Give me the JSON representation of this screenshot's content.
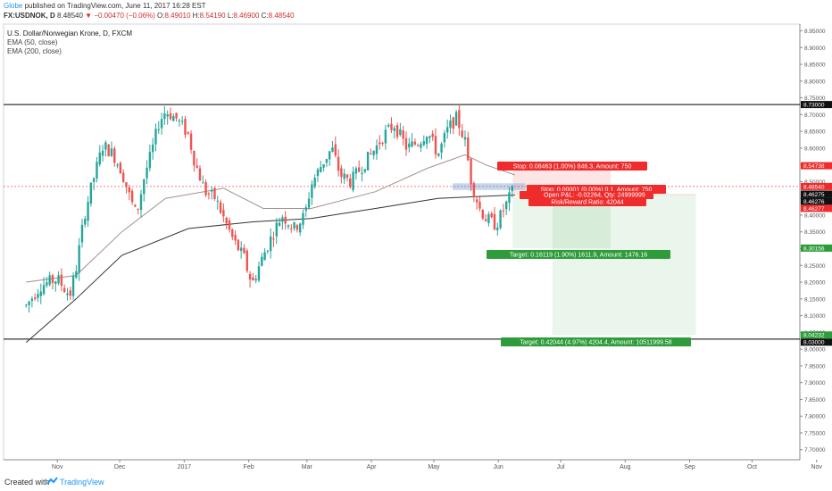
{
  "header": {
    "author": "Globe",
    "published": "published on TradingView.com, June 11, 2017 16:28 EST",
    "symbol": "FX:USDNOK, D",
    "last": "8.48540",
    "change": "▼ −0.00470 (−0.06%)",
    "o_label": "O:",
    "o": "8.49010",
    "h_label": "H:",
    "h": "8.54190",
    "l_label": "L:",
    "l": "8.46900",
    "c_label": "C:",
    "c": "8.48540"
  },
  "legend": {
    "title": "U.S. Dollar/Norwegian Krone, D, FXCM",
    "ema50": "EMA (50, close)",
    "ema200": "EMA (200, close)"
  },
  "footer": {
    "created": "Created with",
    "brand": "TradingView"
  },
  "colors": {
    "up": "#26a69a",
    "down": "#ef5350",
    "ema50": "#a58f8f",
    "ema200": "#333333",
    "target": "#2e9c3a",
    "stop": "#ef2b2b"
  },
  "chart_data": {
    "type": "candlestick",
    "ylim": [
      7.67,
      8.97
    ],
    "y_ticks": [
      "8.95000",
      "8.90000",
      "8.85000",
      "8.80000",
      "8.75000",
      "8.70000",
      "8.65000",
      "8.60000",
      "8.55000",
      "8.50000",
      "8.45000",
      "8.40000",
      "8.35000",
      "8.30000",
      "8.25000",
      "8.20000",
      "8.15000",
      "8.10000",
      "8.05000",
      "8.00000",
      "7.95000",
      "7.90000",
      "7.85000",
      "7.80000",
      "7.75000",
      "7.70000"
    ],
    "x_ticks": [
      "Nov",
      "Dec",
      "2017",
      "Feb",
      "Mar",
      "Apr",
      "May",
      "Jun",
      "Jul",
      "Aug",
      "Sep",
      "Oct",
      "Nov"
    ],
    "horizontal_lines": [
      8.73,
      8.03
    ],
    "current_price": 8.4854,
    "price_labels": [
      {
        "text": "8.73000",
        "value": 8.73,
        "style": "black"
      },
      {
        "text": "8.54738",
        "value": 8.54738,
        "style": "red"
      },
      {
        "text": "8.48540",
        "value": 8.4854,
        "style": "red"
      },
      {
        "text": "8.46275",
        "value": 8.46275,
        "style": "black"
      },
      {
        "text": "8.46276",
        "value": 8.46276,
        "style": "black"
      },
      {
        "text": "8.46277",
        "value": 8.46277,
        "style": "red"
      },
      {
        "text": "8.30156",
        "value": 8.30156,
        "style": "green"
      },
      {
        "text": "8.04232",
        "value": 8.04232,
        "style": "green"
      },
      {
        "text": "8.03000",
        "value": 8.03,
        "style": "black"
      }
    ],
    "positions": [
      {
        "entry": 8.46275,
        "stop": 8.54738,
        "target": 8.30156,
        "start": "2017-06-08",
        "end": "2017-07-25"
      },
      {
        "entry": 8.46276,
        "stop": 8.46277,
        "target": 8.04232,
        "start": "2017-06-27",
        "end": "2017-09-04"
      }
    ],
    "annotations": [
      {
        "text": "Stop: 0.08463 (1.00%) 846.3, Amount: 750",
        "type": "stop"
      },
      {
        "text": "Stop: 0.00001 (0.00%) 0.1, Amount: 750",
        "type": "stop"
      },
      {
        "text": "Open P&L: -0.02264, Qty: 24999999",
        "type": "stop"
      },
      {
        "text": "Open P&L: -0.02264, Qty: 24999999",
        "type": "stop"
      },
      {
        "text": "Risk/Reward Ratio: 42044",
        "type": "stop"
      },
      {
        "text": "Target: 0.16119 (1.90%) 1611.9, Amount: 1476.16",
        "type": "target"
      },
      {
        "text": "Target: 0.42044 (4.97%) 4204.4, Amount: 10511999.58",
        "type": "target"
      }
    ],
    "candle_points": [
      [
        "2016-10-17",
        8.13
      ],
      [
        "2016-10-24",
        8.19
      ],
      [
        "2016-11-01",
        8.21
      ],
      [
        "2016-11-07",
        8.16
      ],
      [
        "2016-11-10",
        8.24
      ],
      [
        "2016-11-14",
        8.4
      ],
      [
        "2016-11-18",
        8.5
      ],
      [
        "2016-11-23",
        8.61
      ],
      [
        "2016-11-28",
        8.58
      ],
      [
        "2016-12-02",
        8.53
      ],
      [
        "2016-12-06",
        8.45
      ],
      [
        "2016-12-09",
        8.4
      ],
      [
        "2016-12-13",
        8.52
      ],
      [
        "2016-12-16",
        8.58
      ],
      [
        "2016-12-20",
        8.68
      ],
      [
        "2016-12-23",
        8.71
      ],
      [
        "2016-12-28",
        8.69
      ],
      [
        "2017-01-03",
        8.64
      ],
      [
        "2017-01-06",
        8.56
      ],
      [
        "2017-01-11",
        8.47
      ],
      [
        "2017-01-16",
        8.45
      ],
      [
        "2017-01-20",
        8.39
      ],
      [
        "2017-01-25",
        8.32
      ],
      [
        "2017-01-30",
        8.27
      ],
      [
        "2017-02-01",
        8.22
      ],
      [
        "2017-02-03",
        8.2
      ],
      [
        "2017-02-08",
        8.28
      ],
      [
        "2017-02-13",
        8.35
      ],
      [
        "2017-02-17",
        8.4
      ],
      [
        "2017-02-23",
        8.36
      ],
      [
        "2017-02-28",
        8.4
      ],
      [
        "2017-03-03",
        8.49
      ],
      [
        "2017-03-08",
        8.55
      ],
      [
        "2017-03-13",
        8.6
      ],
      [
        "2017-03-17",
        8.52
      ],
      [
        "2017-03-22",
        8.5
      ],
      [
        "2017-03-28",
        8.55
      ],
      [
        "2017-04-03",
        8.6
      ],
      [
        "2017-04-07",
        8.64
      ],
      [
        "2017-04-12",
        8.67
      ],
      [
        "2017-04-18",
        8.6
      ],
      [
        "2017-04-24",
        8.62
      ],
      [
        "2017-04-28",
        8.65
      ],
      [
        "2017-05-03",
        8.58
      ],
      [
        "2017-05-08",
        8.66
      ],
      [
        "2017-05-12",
        8.69
      ],
      [
        "2017-05-16",
        8.62
      ],
      [
        "2017-05-19",
        8.5
      ],
      [
        "2017-05-23",
        8.42
      ],
      [
        "2017-05-26",
        8.39
      ],
      [
        "2017-05-31",
        8.37
      ],
      [
        "2017-06-03",
        8.41
      ],
      [
        "2017-06-07",
        8.46
      ],
      [
        "2017-06-09",
        8.485
      ]
    ],
    "ema50_points": [
      [
        "2016-10-17",
        8.2
      ],
      [
        "2016-11-10",
        8.22
      ],
      [
        "2016-12-02",
        8.35
      ],
      [
        "2016-12-23",
        8.45
      ],
      [
        "2017-01-20",
        8.48
      ],
      [
        "2017-02-08",
        8.42
      ],
      [
        "2017-03-03",
        8.42
      ],
      [
        "2017-04-03",
        8.47
      ],
      [
        "2017-04-28",
        8.54
      ],
      [
        "2017-05-16",
        8.58
      ],
      [
        "2017-05-26",
        8.55
      ],
      [
        "2017-06-09",
        8.52
      ]
    ],
    "ema200_points": [
      [
        "2016-10-17",
        8.02
      ],
      [
        "2016-11-10",
        8.15
      ],
      [
        "2016-12-02",
        8.28
      ],
      [
        "2017-01-03",
        8.36
      ],
      [
        "2017-02-03",
        8.38
      ],
      [
        "2017-03-03",
        8.39
      ],
      [
        "2017-04-03",
        8.42
      ],
      [
        "2017-05-03",
        8.45
      ],
      [
        "2017-06-09",
        8.46
      ]
    ]
  }
}
